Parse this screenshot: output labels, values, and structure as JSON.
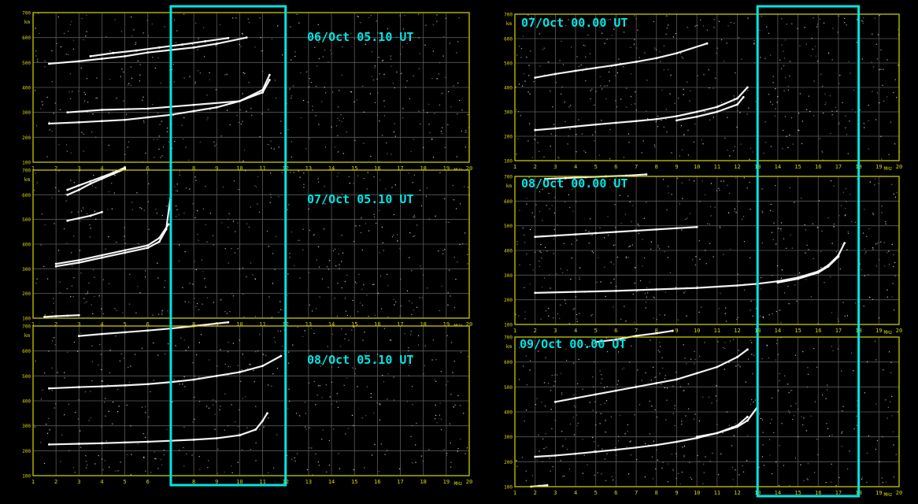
{
  "colors": {
    "background": "#000000",
    "frame": "#d8d800",
    "grid": "#5a5a5a",
    "trace": "#ffffff",
    "highlight": "#00e5e5",
    "tick_text": "#d8d800"
  },
  "y_unit": "km",
  "x_unit": "MHz",
  "chart_data": [
    {
      "type": "scatter",
      "label": "06/Oct 05.10 UT",
      "x_ticks": [
        "1",
        "2",
        "3",
        "4",
        "5",
        "6",
        "7",
        "8",
        "9",
        "10",
        "11",
        "12",
        "13",
        "14",
        "15",
        "16",
        "17",
        "18",
        "19",
        "20"
      ],
      "y_ticks": [
        "700",
        "600",
        "500",
        "400",
        "300",
        "200",
        "100"
      ],
      "xlim": [
        1,
        20
      ],
      "ylim": [
        100,
        700
      ],
      "highlight_x": [
        7,
        12
      ],
      "series": [
        {
          "x": [
            1.7,
            3,
            4,
            5,
            6,
            7,
            8,
            9,
            10,
            11,
            11.3
          ],
          "y": [
            255,
            260,
            265,
            270,
            280,
            290,
            305,
            320,
            345,
            390,
            450
          ]
        },
        {
          "x": [
            2.5,
            4,
            6,
            8,
            10,
            11,
            11.3
          ],
          "y": [
            300,
            310,
            315,
            330,
            345,
            380,
            430
          ]
        },
        {
          "x": [
            1.7,
            3,
            4,
            5,
            6,
            7,
            8,
            9,
            10.3
          ],
          "y": [
            495,
            505,
            515,
            525,
            540,
            550,
            560,
            575,
            600
          ]
        },
        {
          "x": [
            3.5,
            4.5,
            5.5,
            6.5,
            7.5,
            8.5,
            9.5
          ],
          "y": [
            525,
            538,
            548,
            560,
            572,
            585,
            598
          ]
        }
      ]
    },
    {
      "type": "scatter",
      "label": "07/Oct 05.10 UT",
      "x_ticks": [
        "1",
        "2",
        "3",
        "4",
        "5",
        "6",
        "7",
        "8",
        "9",
        "10",
        "11",
        "12",
        "13",
        "14",
        "15",
        "16",
        "17",
        "18",
        "19",
        "20"
      ],
      "y_ticks": [
        "700",
        "600",
        "500",
        "400",
        "300",
        "200",
        "100"
      ],
      "xlim": [
        1,
        20
      ],
      "ylim": [
        100,
        700
      ],
      "highlight_x": [
        7,
        12
      ],
      "series": [
        {
          "x": [
            2,
            3,
            4,
            5,
            6,
            6.5,
            6.8,
            7
          ],
          "y": [
            310,
            325,
            345,
            365,
            385,
            410,
            460,
            600
          ]
        },
        {
          "x": [
            2,
            3,
            4,
            5,
            6,
            6.5,
            6.9
          ],
          "y": [
            320,
            335,
            355,
            375,
            395,
            425,
            480
          ]
        },
        {
          "x": [
            2.5,
            3,
            3.5,
            4,
            4.5,
            5
          ],
          "y": [
            600,
            620,
            645,
            665,
            685,
            705
          ]
        },
        {
          "x": [
            2.5,
            3,
            3.5,
            4,
            4.5,
            5
          ],
          "y": [
            620,
            638,
            655,
            672,
            690,
            710
          ]
        },
        {
          "x": [
            2.5,
            3,
            3.5,
            4
          ],
          "y": [
            495,
            505,
            515,
            530
          ]
        },
        {
          "x": [
            1.5,
            2,
            2.5,
            3
          ],
          "y": [
            105,
            108,
            110,
            112
          ]
        }
      ]
    },
    {
      "type": "scatter",
      "label": "08/Oct 05.10 UT",
      "x_ticks": [
        "1",
        "2",
        "3",
        "4",
        "5",
        "6",
        "7",
        "8",
        "9",
        "10",
        "11",
        "12",
        "13",
        "14",
        "15",
        "16",
        "17",
        "18",
        "19",
        "20"
      ],
      "y_ticks": [
        "700",
        "600",
        "500",
        "400",
        "300",
        "200",
        "100"
      ],
      "xlim": [
        1,
        20
      ],
      "ylim": [
        100,
        700
      ],
      "highlight_x": [
        7,
        12
      ],
      "series": [
        {
          "x": [
            1.7,
            3,
            4,
            5,
            6,
            7,
            8,
            9,
            10,
            10.7,
            11,
            11.2
          ],
          "y": [
            225,
            228,
            230,
            233,
            236,
            240,
            244,
            250,
            262,
            285,
            320,
            350
          ]
        },
        {
          "x": [
            1.7,
            3,
            4,
            5,
            6,
            7,
            8,
            9,
            10,
            11,
            11.8
          ],
          "y": [
            450,
            455,
            458,
            462,
            467,
            475,
            485,
            500,
            515,
            540,
            580
          ]
        },
        {
          "x": [
            3,
            4,
            5,
            6,
            7,
            8,
            9.5
          ],
          "y": [
            660,
            668,
            675,
            682,
            690,
            700,
            715
          ]
        }
      ]
    },
    {
      "type": "scatter",
      "label": "07/Oct 00.00 UT",
      "x_ticks": [
        "1",
        "2",
        "3",
        "4",
        "5",
        "6",
        "7",
        "8",
        "9",
        "10",
        "11",
        "12",
        "13",
        "14",
        "15",
        "16",
        "17",
        "18",
        "19",
        "20"
      ],
      "y_ticks": [
        "700",
        "600",
        "500",
        "400",
        "300",
        "200",
        "100"
      ],
      "xlim": [
        1,
        20
      ],
      "ylim": [
        100,
        700
      ],
      "highlight_x": [
        13,
        18
      ],
      "series": [
        {
          "x": [
            2,
            3,
            4,
            5,
            6,
            7,
            8,
            9,
            10,
            11,
            12,
            12.5
          ],
          "y": [
            225,
            232,
            240,
            248,
            255,
            262,
            270,
            282,
            300,
            320,
            355,
            400
          ]
        },
        {
          "x": [
            9,
            10,
            11,
            12,
            12.3
          ],
          "y": [
            265,
            280,
            300,
            330,
            360
          ]
        },
        {
          "x": [
            2,
            3,
            4,
            5,
            6,
            7,
            8,
            9,
            10.5
          ],
          "y": [
            440,
            455,
            468,
            480,
            492,
            505,
            520,
            540,
            580
          ]
        }
      ]
    },
    {
      "type": "scatter",
      "label": "08/Oct 00.00 UT",
      "x_ticks": [
        "1",
        "2",
        "3",
        "4",
        "5",
        "6",
        "7",
        "8",
        "9",
        "10",
        "11",
        "12",
        "13",
        "14",
        "15",
        "16",
        "17",
        "18",
        "19",
        "20"
      ],
      "y_ticks": [
        "700",
        "600",
        "500",
        "400",
        "300",
        "200",
        "100"
      ],
      "xlim": [
        1,
        20
      ],
      "ylim": [
        100,
        700
      ],
      "highlight_x": [
        13,
        18
      ],
      "series": [
        {
          "x": [
            2,
            4,
            6,
            8,
            10,
            12,
            13,
            14,
            15,
            16,
            16.5,
            17,
            17.3
          ],
          "y": [
            228,
            232,
            236,
            242,
            248,
            258,
            265,
            275,
            290,
            315,
            340,
            380,
            430
          ]
        },
        {
          "x": [
            14,
            15,
            16,
            16.5,
            17
          ],
          "y": [
            270,
            285,
            310,
            335,
            375
          ]
        },
        {
          "x": [
            2,
            3,
            4,
            5,
            6,
            7,
            8,
            9,
            10
          ],
          "y": [
            455,
            460,
            465,
            470,
            475,
            480,
            485,
            490,
            495
          ]
        },
        {
          "x": [
            2.5,
            3.5,
            4.5,
            5.5,
            6.5,
            7.5
          ],
          "y": [
            690,
            693,
            697,
            700,
            703,
            708
          ]
        }
      ]
    },
    {
      "type": "scatter",
      "label": "09/Oct 00.00 UT",
      "x_ticks": [
        "1",
        "2",
        "3",
        "4",
        "5",
        "6",
        "7",
        "8",
        "9",
        "10",
        "11",
        "12",
        "13",
        "14",
        "15",
        "16",
        "17",
        "18",
        "19",
        "20"
      ],
      "y_ticks": [
        "700",
        "600",
        "500",
        "400",
        "300",
        "200",
        "100"
      ],
      "xlim": [
        1,
        20
      ],
      "ylim": [
        100,
        700
      ],
      "highlight_x": [
        13,
        18
      ],
      "series": [
        {
          "x": [
            2,
            3,
            4,
            5,
            6,
            7,
            8,
            9,
            10,
            11,
            12,
            12.5,
            13
          ],
          "y": [
            220,
            225,
            232,
            240,
            248,
            257,
            267,
            280,
            295,
            315,
            340,
            365,
            420
          ]
        },
        {
          "x": [
            10,
            11,
            12,
            12.5
          ],
          "y": [
            300,
            315,
            345,
            380
          ]
        },
        {
          "x": [
            3,
            4,
            5,
            6,
            7,
            8,
            9,
            10,
            11,
            12,
            12.5
          ],
          "y": [
            440,
            455,
            470,
            485,
            500,
            515,
            530,
            555,
            580,
            620,
            650
          ]
        },
        {
          "x": [
            5,
            6,
            7,
            8,
            8.8
          ],
          "y": [
            680,
            690,
            705,
            715,
            725
          ]
        },
        {
          "x": [
            1.8,
            2.2,
            2.6
          ],
          "y": [
            100,
            103,
            106
          ]
        }
      ]
    }
  ]
}
